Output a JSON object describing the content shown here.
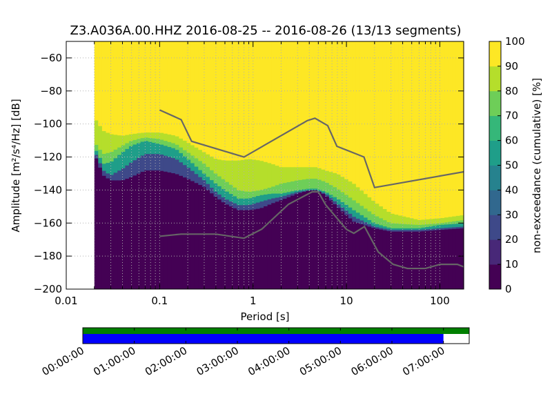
{
  "title": "Z3.A036A.00.HHZ   2016-08-25 -- 2016-08-26  (13/13 segments)",
  "chart_data": {
    "type": "heatmap",
    "x_scale": "log",
    "xlim": [
      0.01,
      180
    ],
    "ylim": [
      -200,
      -50
    ],
    "xlabel": "Period [s]",
    "ylabel": "Amplitude [m²/s⁴/Hz] [dB]",
    "x_ticks": [
      {
        "v": 0.01,
        "label": "0.01"
      },
      {
        "v": 0.1,
        "label": "0.1"
      },
      {
        "v": 1,
        "label": "1"
      },
      {
        "v": 10,
        "label": "10"
      },
      {
        "v": 100,
        "label": "100"
      }
    ],
    "y_ticks": [
      -60,
      -80,
      -100,
      -120,
      -140,
      -160,
      -180,
      -200
    ],
    "grid": true,
    "data_start_period": 0.02,
    "colorbar": {
      "label": "non-exceedance (cumulative) [%]",
      "range": [
        0,
        100
      ],
      "ticks": [
        0,
        10,
        20,
        30,
        40,
        50,
        60,
        70,
        80,
        90,
        100
      ],
      "colormap": "viridis"
    },
    "contours": {
      "p5": [
        [
          0.02,
          -118
        ],
        [
          0.025,
          -131
        ],
        [
          0.03,
          -134
        ],
        [
          0.04,
          -134
        ],
        [
          0.05,
          -132
        ],
        [
          0.07,
          -128
        ],
        [
          0.1,
          -128
        ],
        [
          0.15,
          -130
        ],
        [
          0.2,
          -133
        ],
        [
          0.3,
          -138
        ],
        [
          0.4,
          -144
        ],
        [
          0.5,
          -148
        ],
        [
          0.7,
          -152
        ],
        [
          0.9,
          -152
        ],
        [
          1.2,
          -151
        ],
        [
          1.6,
          -148
        ],
        [
          2,
          -146
        ],
        [
          3,
          -142
        ],
        [
          4,
          -140
        ],
        [
          4.8,
          -140
        ],
        [
          6,
          -143
        ],
        [
          8,
          -150
        ],
        [
          12,
          -159
        ],
        [
          20,
          -163
        ],
        [
          30,
          -165
        ],
        [
          60,
          -165
        ],
        [
          100,
          -164
        ],
        [
          180,
          -163
        ]
      ],
      "p20": [
        [
          0.02,
          -116
        ],
        [
          0.025,
          -128
        ],
        [
          0.03,
          -131
        ],
        [
          0.04,
          -127
        ],
        [
          0.05,
          -123
        ],
        [
          0.07,
          -118
        ],
        [
          0.1,
          -118
        ],
        [
          0.15,
          -121
        ],
        [
          0.2,
          -126
        ],
        [
          0.3,
          -134
        ],
        [
          0.4,
          -141
        ],
        [
          0.5,
          -145
        ],
        [
          0.7,
          -149
        ],
        [
          0.9,
          -149
        ],
        [
          1.2,
          -147
        ],
        [
          1.6,
          -145
        ],
        [
          2,
          -144
        ],
        [
          3,
          -141
        ],
        [
          4,
          -140
        ],
        [
          4.8,
          -140
        ],
        [
          6,
          -142
        ],
        [
          8,
          -148
        ],
        [
          12,
          -156
        ],
        [
          20,
          -162
        ],
        [
          30,
          -164
        ],
        [
          60,
          -164
        ],
        [
          100,
          -163
        ],
        [
          180,
          -162
        ]
      ],
      "p50": [
        [
          0.02,
          -114
        ],
        [
          0.025,
          -124
        ],
        [
          0.03,
          -123
        ],
        [
          0.04,
          -117
        ],
        [
          0.05,
          -113
        ],
        [
          0.07,
          -110
        ],
        [
          0.1,
          -112
        ],
        [
          0.15,
          -115
        ],
        [
          0.2,
          -121
        ],
        [
          0.3,
          -130
        ],
        [
          0.4,
          -136
        ],
        [
          0.5,
          -140
        ],
        [
          0.7,
          -145
        ],
        [
          0.9,
          -145
        ],
        [
          1.2,
          -143
        ],
        [
          1.6,
          -142
        ],
        [
          2,
          -142
        ],
        [
          3,
          -140
        ],
        [
          4,
          -139
        ],
        [
          4.8,
          -139
        ],
        [
          6,
          -141
        ],
        [
          8,
          -145
        ],
        [
          12,
          -152
        ],
        [
          20,
          -160
        ],
        [
          30,
          -163
        ],
        [
          60,
          -163
        ],
        [
          100,
          -161
        ],
        [
          180,
          -160
        ]
      ],
      "p70": [
        [
          0.02,
          -111
        ],
        [
          0.025,
          -118
        ],
        [
          0.03,
          -117
        ],
        [
          0.04,
          -113
        ],
        [
          0.05,
          -110
        ],
        [
          0.07,
          -108
        ],
        [
          0.1,
          -109
        ],
        [
          0.15,
          -112
        ],
        [
          0.2,
          -117
        ],
        [
          0.3,
          -124
        ],
        [
          0.4,
          -130
        ],
        [
          0.5,
          -134
        ],
        [
          0.7,
          -140
        ],
        [
          0.9,
          -141
        ],
        [
          1.2,
          -140
        ],
        [
          1.6,
          -138
        ],
        [
          2,
          -136
        ],
        [
          3,
          -134
        ],
        [
          4,
          -133
        ],
        [
          4.8,
          -133
        ],
        [
          6,
          -135
        ],
        [
          8,
          -139
        ],
        [
          12,
          -146
        ],
        [
          20,
          -155
        ],
        [
          30,
          -160
        ],
        [
          60,
          -161
        ],
        [
          100,
          -160
        ],
        [
          180,
          -158
        ]
      ],
      "p90": [
        [
          0.02,
          -96
        ],
        [
          0.025,
          -104
        ],
        [
          0.03,
          -106
        ],
        [
          0.04,
          -107
        ],
        [
          0.05,
          -106
        ],
        [
          0.07,
          -105
        ],
        [
          0.1,
          -105
        ],
        [
          0.15,
          -107
        ],
        [
          0.2,
          -111
        ],
        [
          0.3,
          -117
        ],
        [
          0.4,
          -121
        ],
        [
          0.5,
          -122
        ],
        [
          0.7,
          -122
        ],
        [
          0.9,
          -121
        ],
        [
          1.2,
          -122
        ],
        [
          1.6,
          -124
        ],
        [
          2,
          -126
        ],
        [
          3,
          -126
        ],
        [
          4,
          -126
        ],
        [
          4.8,
          -126
        ],
        [
          6,
          -128
        ],
        [
          8,
          -130
        ],
        [
          12,
          -136
        ],
        [
          20,
          -147
        ],
        [
          30,
          -154
        ],
        [
          60,
          -158
        ],
        [
          100,
          -157
        ],
        [
          180,
          -155
        ]
      ]
    },
    "nhnm": [
      [
        0.1,
        -91.5
      ],
      [
        0.17,
        -97.4
      ],
      [
        0.22,
        -110.5
      ],
      [
        0.8,
        -120
      ],
      [
        3.8,
        -98
      ],
      [
        4.6,
        -96.5
      ],
      [
        6.3,
        -101
      ],
      [
        7.9,
        -113.5
      ],
      [
        15.4,
        -120
      ],
      [
        20,
        -138.5
      ],
      [
        354.8,
        -126
      ]
    ],
    "nlnm": [
      [
        0.1,
        -168
      ],
      [
        0.17,
        -166.7
      ],
      [
        0.4,
        -166.7
      ],
      [
        0.8,
        -169.2
      ],
      [
        1.24,
        -163.7
      ],
      [
        2.4,
        -148.6
      ],
      [
        4.3,
        -141.1
      ],
      [
        5,
        -141.1
      ],
      [
        6,
        -149
      ],
      [
        10,
        -163.8
      ],
      [
        12,
        -166.2
      ],
      [
        15.6,
        -162.1
      ],
      [
        21.9,
        -177.5
      ],
      [
        31.6,
        -185
      ],
      [
        45,
        -187.5
      ],
      [
        70,
        -187.5
      ],
      [
        101,
        -185
      ],
      [
        154,
        -185
      ],
      [
        200,
        -187.5
      ]
    ],
    "timeline": {
      "time_labels": [
        "00:00:00",
        "01:00:00",
        "02:00:00",
        "03:00:00",
        "04:00:00",
        "05:00:00",
        "06:00:00",
        "07:00:00"
      ],
      "span_hours": 7.5,
      "data_available_hours": [
        0,
        7.5
      ],
      "data_used_hours": [
        0,
        7.0
      ],
      "available_color": "#008000",
      "used_color": "#0000ff"
    }
  }
}
